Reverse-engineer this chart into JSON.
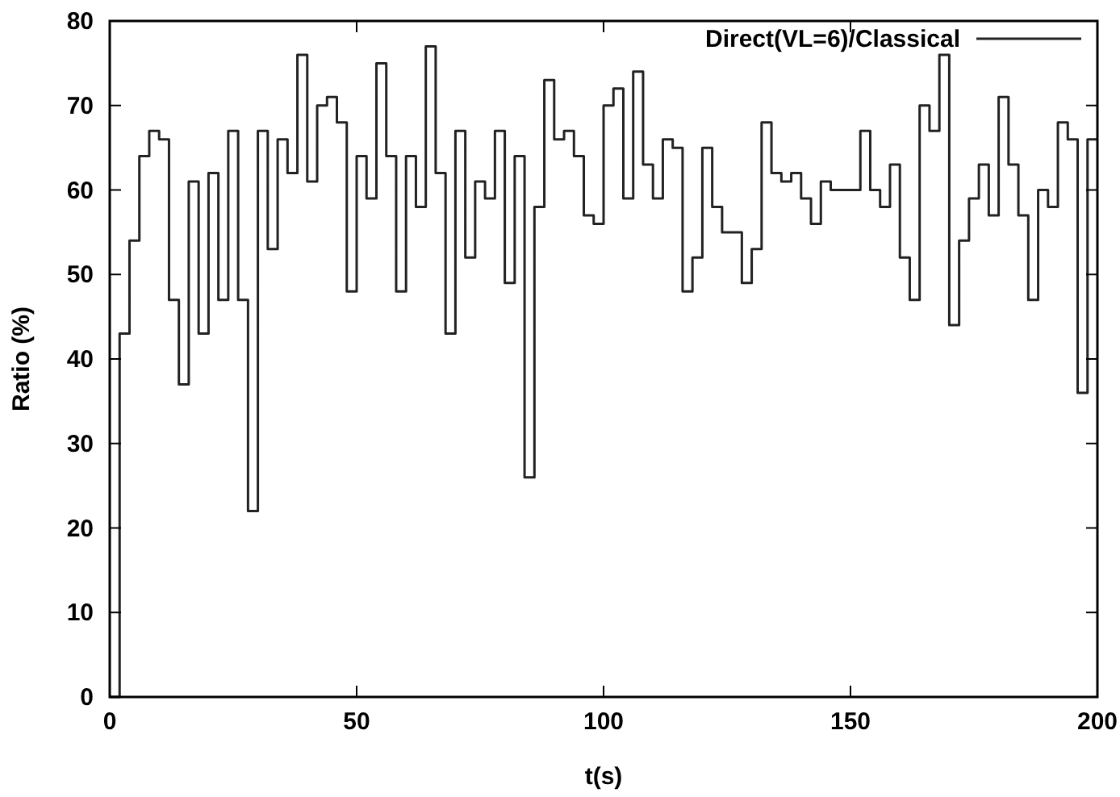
{
  "chart_data": {
    "type": "step",
    "xlabel": "t(s)",
    "ylabel": "Ratio (%)",
    "xlim": [
      0,
      200
    ],
    "ylim": [
      0,
      80
    ],
    "xticks": [
      0,
      50,
      100,
      150,
      200
    ],
    "yticks": [
      0,
      10,
      20,
      30,
      40,
      50,
      60,
      70,
      80
    ],
    "grid": false,
    "legend": "top right",
    "line_style": "solid",
    "series": [
      {
        "name": "Direct(VL=6)/Classical",
        "color": "#222222",
        "x": [
          0,
          2,
          4,
          6,
          8,
          10,
          12,
          14,
          16,
          18,
          20,
          22,
          24,
          26,
          28,
          30,
          32,
          34,
          36,
          38,
          40,
          42,
          44,
          46,
          48,
          50,
          52,
          54,
          56,
          58,
          60,
          62,
          64,
          66,
          68,
          70,
          72,
          74,
          76,
          78,
          80,
          82,
          84,
          86,
          88,
          90,
          92,
          94,
          96,
          98,
          100,
          102,
          104,
          106,
          108,
          110,
          112,
          114,
          116,
          118,
          120,
          122,
          124,
          126,
          128,
          130,
          132,
          134,
          136,
          138,
          140,
          142,
          144,
          146,
          148,
          150,
          152,
          154,
          156,
          158,
          160,
          162,
          164,
          166,
          168,
          170,
          172,
          174,
          176,
          178,
          180,
          182,
          184,
          186,
          188,
          190,
          192,
          194,
          196,
          198,
          200
        ],
        "values": [
          0,
          43,
          54,
          64,
          67,
          66,
          47,
          37,
          61,
          43,
          62,
          47,
          67,
          47,
          22,
          67,
          53,
          66,
          62,
          76,
          61,
          70,
          71,
          68,
          48,
          64,
          59,
          75,
          64,
          48,
          64,
          58,
          77,
          62,
          43,
          67,
          52,
          61,
          59,
          67,
          49,
          64,
          26,
          58,
          73,
          66,
          67,
          64,
          57,
          56,
          70,
          72,
          59,
          74,
          63,
          59,
          66,
          65,
          48,
          52,
          65,
          58,
          55,
          55,
          49,
          53,
          68,
          62,
          61,
          62,
          59,
          56,
          61,
          60,
          60,
          60,
          67,
          60,
          58,
          63,
          52,
          47,
          70,
          67,
          76,
          44,
          54,
          59,
          63,
          57,
          71,
          63,
          57,
          47,
          60,
          58,
          68,
          66,
          36,
          66,
          66
        ]
      }
    ]
  }
}
